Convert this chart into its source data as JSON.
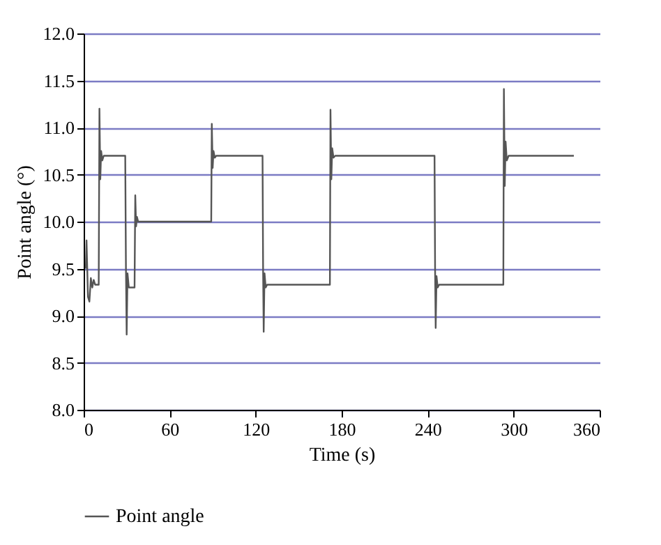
{
  "chart_data": {
    "type": "line",
    "xlabel": "Time (s)",
    "ylabel": "Point angle (°)",
    "x": [
      1.5,
      2,
      3,
      4,
      5,
      6,
      7,
      8,
      10.5,
      11,
      11.6,
      12.2,
      13,
      14,
      29,
      29.5,
      30,
      30.6,
      31.5,
      35.5,
      36,
      36.6,
      37.2,
      38,
      89,
      89.4,
      90,
      90.6,
      91.5,
      92.5,
      124.8,
      125.2,
      125.6,
      126.2,
      127,
      128,
      171.8,
      172.2,
      172.8,
      173.4,
      174.3,
      175.5,
      244.8,
      245.2,
      245.6,
      246.2,
      247,
      248,
      292.8,
      293.2,
      293.8,
      294.4,
      295.2,
      296.5,
      342
    ],
    "series": [
      {
        "name": "Point angle",
        "color": "#555555",
        "values": [
          9.5,
          9.8,
          9.2,
          9.15,
          9.4,
          9.3,
          9.38,
          9.33,
          9.33,
          11.2,
          10.45,
          10.75,
          10.65,
          10.7,
          10.7,
          9.5,
          8.8,
          9.45,
          9.3,
          9.3,
          10.28,
          9.95,
          10.05,
          10.0,
          10.0,
          11.04,
          10.57,
          10.75,
          10.68,
          10.7,
          10.7,
          9.46,
          8.83,
          9.45,
          9.3,
          9.33,
          9.33,
          11.19,
          10.45,
          10.78,
          10.68,
          10.7,
          10.7,
          9.48,
          8.87,
          9.42,
          9.3,
          9.33,
          9.33,
          11.41,
          10.38,
          10.85,
          10.65,
          10.7,
          10.7
        ]
      }
    ],
    "xlim": [
      0,
      360
    ],
    "xticks": [
      0,
      60,
      120,
      180,
      240,
      300,
      360
    ],
    "ylim": [
      8.0,
      12.0
    ],
    "yticks": [
      {
        "value": 8,
        "label": "8.0"
      },
      8.5,
      {
        "value": 9,
        "label": "9.0"
      },
      9.5,
      {
        "value": 10,
        "label": "10.0"
      },
      10.5,
      {
        "value": 11,
        "label": "11.0"
      },
      11.5,
      {
        "value": 12,
        "label": "12.0"
      }
    ],
    "grid": "y",
    "legend": "bottom left",
    "line_style": "solid"
  }
}
